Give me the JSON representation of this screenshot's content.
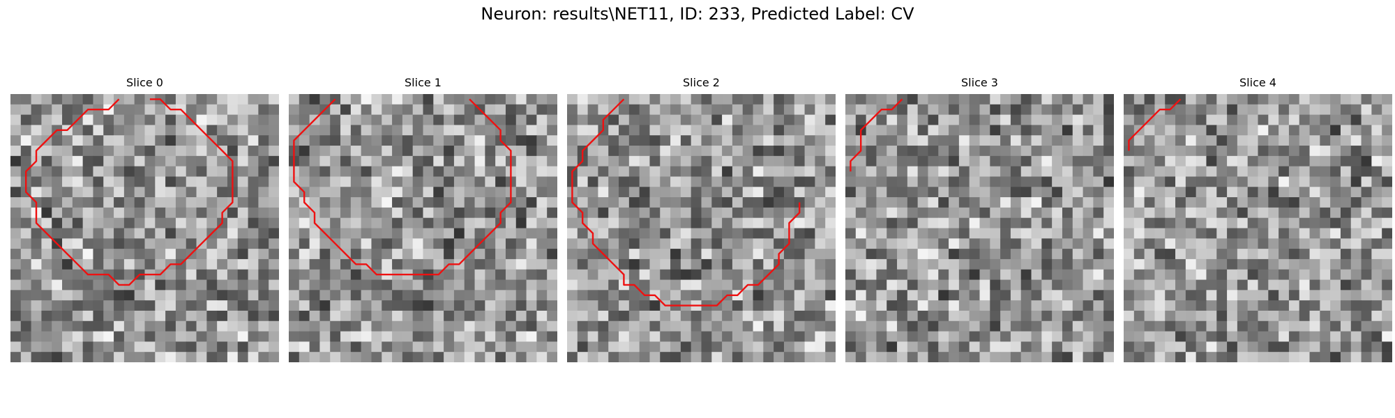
{
  "figure": {
    "title": "Neuron: results\\NET11, ID: 233, Predicted Label: CV"
  },
  "chart_data": {
    "type": "heatmap",
    "colormap": "gray",
    "contour_color": "#ee1111",
    "grid_size": 26,
    "panels": [
      {
        "title": "Slice 0",
        "contour": [
          [
            10,
            0
          ],
          [
            9,
            1
          ],
          [
            7,
            1
          ],
          [
            5,
            3
          ],
          [
            4,
            3
          ],
          [
            3,
            4
          ],
          [
            2,
            5
          ],
          [
            2,
            6
          ],
          [
            1,
            7
          ],
          [
            1,
            9
          ],
          [
            2,
            10
          ],
          [
            2,
            12
          ],
          [
            3,
            13
          ],
          [
            4,
            14
          ],
          [
            5,
            15
          ],
          [
            6,
            16
          ],
          [
            7,
            17
          ],
          [
            9,
            17
          ],
          [
            10,
            18
          ],
          [
            11,
            18
          ],
          [
            12,
            17
          ],
          [
            14,
            17
          ],
          [
            15,
            16
          ],
          [
            16,
            16
          ],
          [
            17,
            15
          ],
          [
            18,
            14
          ],
          [
            19,
            13
          ],
          [
            20,
            12
          ],
          [
            20,
            11
          ],
          [
            21,
            10
          ],
          [
            21,
            8
          ],
          [
            21,
            6
          ],
          [
            20,
            5
          ],
          [
            19,
            4
          ],
          [
            18,
            3
          ],
          [
            17,
            2
          ],
          [
            16,
            1
          ],
          [
            15,
            1
          ],
          [
            14,
            0
          ],
          [
            13,
            0
          ]
        ]
      },
      {
        "title": "Slice 1",
        "contour": [
          [
            4,
            0
          ],
          [
            3,
            1
          ],
          [
            2,
            2
          ],
          [
            1,
            3
          ],
          [
            0,
            4
          ],
          [
            0,
            5
          ],
          [
            0,
            8
          ],
          [
            1,
            9
          ],
          [
            1,
            10
          ],
          [
            2,
            11
          ],
          [
            2,
            12
          ],
          [
            3,
            13
          ],
          [
            4,
            14
          ],
          [
            5,
            15
          ],
          [
            6,
            16
          ],
          [
            7,
            16
          ],
          [
            8,
            17
          ],
          [
            9,
            17
          ],
          [
            13,
            17
          ],
          [
            14,
            17
          ],
          [
            15,
            16
          ],
          [
            16,
            16
          ],
          [
            17,
            15
          ],
          [
            18,
            14
          ],
          [
            19,
            13
          ],
          [
            20,
            12
          ],
          [
            20,
            11
          ],
          [
            21,
            10
          ],
          [
            21,
            8
          ],
          [
            21,
            5
          ],
          [
            20,
            4
          ],
          [
            20,
            3
          ],
          [
            19,
            2
          ],
          [
            18,
            1
          ],
          [
            17,
            0
          ]
        ]
      },
      {
        "title": "Slice 2",
        "contour": [
          [
            5,
            0
          ],
          [
            4,
            1
          ],
          [
            3,
            2
          ],
          [
            3,
            3
          ],
          [
            2,
            4
          ],
          [
            1,
            5
          ],
          [
            1,
            6
          ],
          [
            0,
            7
          ],
          [
            0,
            10
          ],
          [
            1,
            11
          ],
          [
            1,
            12
          ],
          [
            2,
            13
          ],
          [
            2,
            14
          ],
          [
            3,
            15
          ],
          [
            4,
            16
          ],
          [
            5,
            17
          ],
          [
            5,
            18
          ],
          [
            6,
            18
          ],
          [
            7,
            19
          ],
          [
            8,
            19
          ],
          [
            9,
            20
          ],
          [
            11,
            20
          ],
          [
            13,
            20
          ],
          [
            14,
            20
          ],
          [
            15,
            19
          ],
          [
            16,
            19
          ],
          [
            17,
            18
          ],
          [
            18,
            18
          ],
          [
            19,
            17
          ],
          [
            20,
            16
          ],
          [
            20,
            15
          ],
          [
            21,
            14
          ],
          [
            21,
            13
          ],
          [
            21,
            12
          ],
          [
            22,
            11
          ],
          [
            22,
            10
          ]
        ]
      },
      {
        "title": "Slice 3",
        "contour": [
          [
            5,
            0
          ],
          [
            4,
            1
          ],
          [
            3,
            1
          ],
          [
            2,
            2
          ],
          [
            1,
            3
          ],
          [
            1,
            5
          ],
          [
            0,
            6
          ],
          [
            0,
            7
          ]
        ]
      },
      {
        "title": "Slice 4",
        "contour": [
          [
            5,
            0
          ],
          [
            4,
            1
          ],
          [
            3,
            1
          ],
          [
            2,
            2
          ],
          [
            1,
            3
          ],
          [
            0,
            4
          ],
          [
            0,
            5
          ]
        ]
      }
    ]
  }
}
